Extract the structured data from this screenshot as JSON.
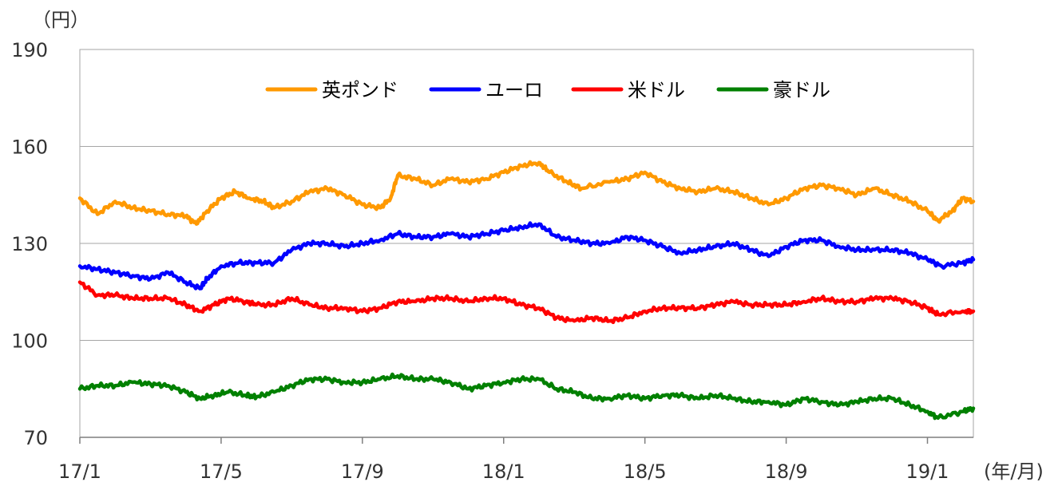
{
  "chart_data": {
    "type": "line",
    "y_unit": "（円）",
    "x_unit": "(年/月)",
    "ylim": [
      70,
      190
    ],
    "y_ticks": [
      "190",
      "160",
      "130",
      "100",
      "70"
    ],
    "y_tick_values": [
      190,
      160,
      130,
      100,
      70
    ],
    "x_ticks": [
      "17/1",
      "17/5",
      "17/9",
      "18/1",
      "18/5",
      "18/9",
      "19/1"
    ],
    "x_tick_months": [
      0,
      4,
      8,
      12,
      16,
      20,
      24
    ],
    "x_range_months": [
      0,
      25.3
    ],
    "grid": "horizontal",
    "legend_position": "top-center",
    "series": [
      {
        "name": "英ポンド",
        "color": "#ff9900",
        "values": [
          [
            0,
            144
          ],
          [
            0.5,
            139
          ],
          [
            1,
            143
          ],
          [
            1.5,
            141
          ],
          [
            2,
            140
          ],
          [
            2.5,
            139
          ],
          [
            3,
            138.5
          ],
          [
            3.3,
            136
          ],
          [
            3.6,
            140
          ],
          [
            4,
            144
          ],
          [
            4.4,
            146
          ],
          [
            4.8,
            144
          ],
          [
            5.2,
            143
          ],
          [
            5.5,
            141
          ],
          [
            6,
            143
          ],
          [
            6.5,
            146
          ],
          [
            7,
            147
          ],
          [
            7.5,
            145
          ],
          [
            8,
            142
          ],
          [
            8.5,
            141
          ],
          [
            8.8,
            144
          ],
          [
            9,
            151
          ],
          [
            9.5,
            150
          ],
          [
            10,
            148
          ],
          [
            10.5,
            150
          ],
          [
            11,
            149
          ],
          [
            11.5,
            150
          ],
          [
            12,
            152
          ],
          [
            12.5,
            154
          ],
          [
            13,
            155
          ],
          [
            13.3,
            152
          ],
          [
            13.8,
            149
          ],
          [
            14.2,
            147
          ],
          [
            15,
            149
          ],
          [
            15.5,
            150
          ],
          [
            16,
            152
          ],
          [
            16.5,
            149
          ],
          [
            17,
            147
          ],
          [
            17.5,
            146
          ],
          [
            18,
            147
          ],
          [
            18.5,
            146
          ],
          [
            19,
            144
          ],
          [
            19.5,
            142
          ],
          [
            20,
            144
          ],
          [
            20.5,
            147
          ],
          [
            21,
            148
          ],
          [
            21.5,
            147
          ],
          [
            22,
            145
          ],
          [
            22.5,
            147
          ],
          [
            23,
            145
          ],
          [
            23.5,
            143
          ],
          [
            24,
            140
          ],
          [
            24.3,
            137
          ],
          [
            24.7,
            140
          ],
          [
            25,
            144
          ],
          [
            25.3,
            143
          ]
        ]
      },
      {
        "name": "ユーロ",
        "color": "#0000ff",
        "values": [
          [
            0,
            123
          ],
          [
            0.5,
            122
          ],
          [
            1,
            121
          ],
          [
            1.5,
            120
          ],
          [
            2,
            119
          ],
          [
            2.5,
            121
          ],
          [
            3,
            118
          ],
          [
            3.4,
            116
          ],
          [
            3.6,
            119
          ],
          [
            4,
            123
          ],
          [
            4.5,
            124
          ],
          [
            5,
            124
          ],
          [
            5.5,
            124
          ],
          [
            6,
            128
          ],
          [
            6.5,
            130
          ],
          [
            7,
            130
          ],
          [
            7.5,
            129
          ],
          [
            8,
            130
          ],
          [
            8.5,
            131
          ],
          [
            9,
            133
          ],
          [
            9.5,
            132
          ],
          [
            10,
            132
          ],
          [
            10.5,
            133
          ],
          [
            11,
            132
          ],
          [
            11.5,
            133
          ],
          [
            12,
            134
          ],
          [
            12.5,
            135
          ],
          [
            13,
            136
          ],
          [
            13.5,
            132
          ],
          [
            14,
            131
          ],
          [
            14.5,
            130
          ],
          [
            15,
            130
          ],
          [
            15.5,
            132
          ],
          [
            16,
            131
          ],
          [
            16.5,
            129
          ],
          [
            17,
            127
          ],
          [
            17.5,
            128
          ],
          [
            18,
            129
          ],
          [
            18.5,
            130
          ],
          [
            19,
            128
          ],
          [
            19.5,
            126
          ],
          [
            20,
            129
          ],
          [
            20.5,
            131
          ],
          [
            21,
            131
          ],
          [
            21.5,
            129
          ],
          [
            22,
            128
          ],
          [
            22.5,
            128
          ],
          [
            23,
            128
          ],
          [
            23.5,
            127
          ],
          [
            24,
            125
          ],
          [
            24.4,
            123
          ],
          [
            25,
            124
          ],
          [
            25.3,
            125
          ]
        ]
      },
      {
        "name": "米ドル",
        "color": "#ff0000",
        "values": [
          [
            0,
            118
          ],
          [
            0.5,
            114
          ],
          [
            1,
            114
          ],
          [
            1.5,
            113
          ],
          [
            2,
            113
          ],
          [
            2.5,
            113
          ],
          [
            3,
            111
          ],
          [
            3.4,
            109
          ],
          [
            3.8,
            111
          ],
          [
            4.2,
            113
          ],
          [
            4.7,
            112
          ],
          [
            5,
            111
          ],
          [
            5.5,
            111
          ],
          [
            6,
            113
          ],
          [
            6.5,
            111
          ],
          [
            7,
            110
          ],
          [
            7.5,
            110
          ],
          [
            8,
            109
          ],
          [
            8.5,
            110
          ],
          [
            9,
            112
          ],
          [
            9.5,
            112
          ],
          [
            10,
            113
          ],
          [
            10.5,
            113
          ],
          [
            11,
            112
          ],
          [
            11.5,
            113
          ],
          [
            12,
            113
          ],
          [
            12.5,
            111
          ],
          [
            13,
            110
          ],
          [
            13.5,
            107
          ],
          [
            14,
            106
          ],
          [
            14.5,
            107
          ],
          [
            15,
            106
          ],
          [
            15.5,
            107
          ],
          [
            16,
            109
          ],
          [
            16.5,
            110
          ],
          [
            17,
            110
          ],
          [
            17.5,
            110
          ],
          [
            18,
            111
          ],
          [
            18.5,
            112
          ],
          [
            19,
            111
          ],
          [
            19.5,
            111
          ],
          [
            20,
            111
          ],
          [
            20.5,
            112
          ],
          [
            21,
            113
          ],
          [
            21.5,
            112
          ],
          [
            22,
            112
          ],
          [
            22.5,
            113
          ],
          [
            23,
            113
          ],
          [
            23.5,
            112
          ],
          [
            24,
            110
          ],
          [
            24.3,
            108
          ],
          [
            25,
            109
          ],
          [
            25.3,
            109
          ]
        ]
      },
      {
        "name": "豪ドル",
        "color": "#008000",
        "values": [
          [
            0,
            85
          ],
          [
            0.5,
            86
          ],
          [
            1,
            86
          ],
          [
            1.5,
            87
          ],
          [
            2,
            86.5
          ],
          [
            2.5,
            86
          ],
          [
            3,
            84
          ],
          [
            3.4,
            82
          ],
          [
            3.8,
            83
          ],
          [
            4.2,
            84
          ],
          [
            4.7,
            83
          ],
          [
            5,
            82.5
          ],
          [
            5.5,
            84
          ],
          [
            6,
            86
          ],
          [
            6.5,
            88
          ],
          [
            7,
            88
          ],
          [
            7.5,
            87
          ],
          [
            8,
            87
          ],
          [
            8.5,
            88
          ],
          [
            9,
            89
          ],
          [
            9.5,
            88
          ],
          [
            10,
            88
          ],
          [
            10.5,
            87
          ],
          [
            11,
            85
          ],
          [
            11.5,
            86
          ],
          [
            12,
            87
          ],
          [
            12.5,
            88
          ],
          [
            13,
            88
          ],
          [
            13.5,
            85
          ],
          [
            14,
            84
          ],
          [
            14.5,
            82
          ],
          [
            15,
            82
          ],
          [
            15.5,
            83
          ],
          [
            16,
            82
          ],
          [
            16.5,
            83
          ],
          [
            17,
            83
          ],
          [
            17.5,
            82
          ],
          [
            18,
            83
          ],
          [
            18.5,
            82
          ],
          [
            19,
            81
          ],
          [
            19.5,
            81
          ],
          [
            20,
            80
          ],
          [
            20.5,
            82
          ],
          [
            21,
            81
          ],
          [
            21.5,
            80
          ],
          [
            22,
            81
          ],
          [
            22.5,
            82
          ],
          [
            23,
            82
          ],
          [
            23.5,
            80
          ],
          [
            24,
            78
          ],
          [
            24.3,
            76
          ],
          [
            25,
            78
          ],
          [
            25.3,
            79
          ]
        ]
      }
    ]
  }
}
